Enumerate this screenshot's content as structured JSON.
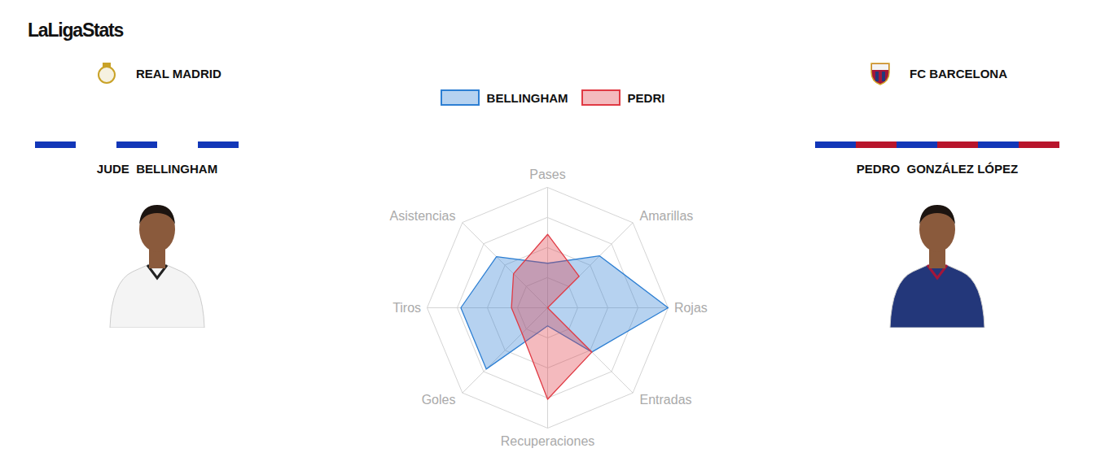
{
  "page": {
    "brand": "LaLigaStats",
    "players": [
      {
        "team": "REAL MADRID",
        "name": "JUDE  BELLINGHAM"
      },
      {
        "team": "FC BARCELONA",
        "name": "PEDRO  GONZÁLEZ LÓPEZ"
      }
    ]
  },
  "chart_data": {
    "type": "radar",
    "categories": [
      "Pases",
      "Amarillas",
      "Rojas",
      "Entradas",
      "Recuperaciones",
      "Goles",
      "Tiros",
      "Asistencias"
    ],
    "series": [
      {
        "name": "BELLINGHAM",
        "color": "#2d7fd3",
        "values": [
          37,
          61,
          100,
          52,
          15,
          72,
          72,
          60
        ]
      },
      {
        "name": "PEDRI",
        "color": "#e03a44",
        "values": [
          61,
          37,
          0,
          52,
          76,
          30,
          30,
          40
        ]
      }
    ],
    "ylim": [
      0,
      100
    ],
    "yticks": [
      25,
      50,
      75,
      100
    ],
    "grid": true,
    "tick_labels": false,
    "legend": "top"
  }
}
